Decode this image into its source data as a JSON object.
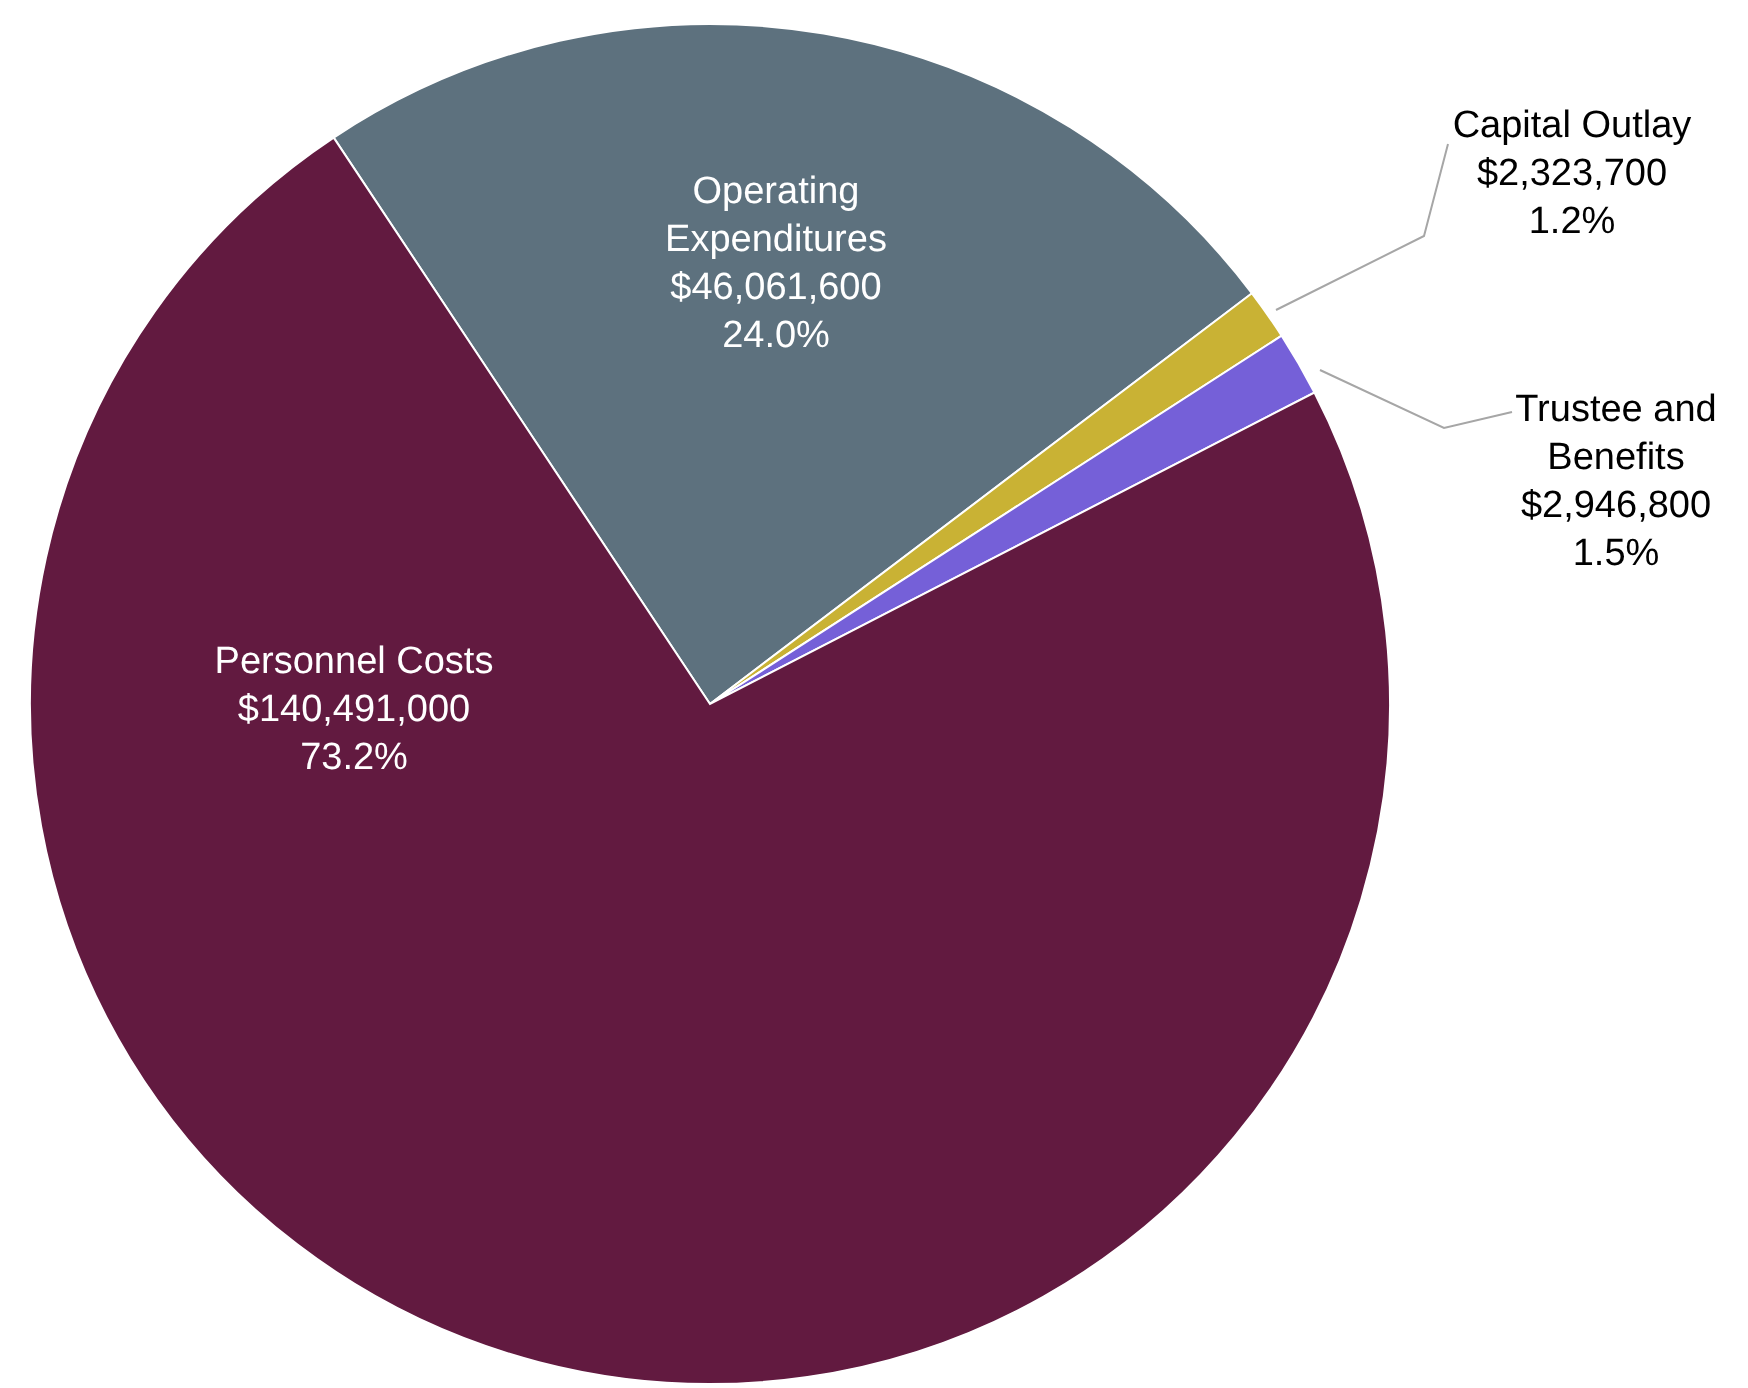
{
  "chart_data": {
    "type": "pie",
    "categories": [
      "Operating Expenditures",
      "Capital Outlay",
      "Trustee and Benefits",
      "Personnel Costs"
    ],
    "values": [
      46061600,
      2323700,
      2946800,
      140491000
    ],
    "colors": [
      "#5d717e",
      "#c9b234",
      "#7560d8",
      "#621a40"
    ],
    "value_labels": [
      "$46,061,600\n24.0%",
      "$2,323,700\n1.2%",
      "$2,946,800\n1.5%",
      "$140,491,000\n73.2%"
    ],
    "legend": false
  }
}
